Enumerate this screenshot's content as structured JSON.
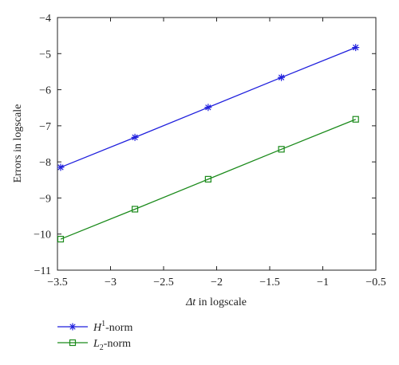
{
  "chart_data": {
    "type": "line",
    "xlabel_symbol": "Δt",
    "xlabel_rest": " in logscale",
    "ylabel": "Errors in logscale",
    "xlim": [
      -3.5,
      -0.5
    ],
    "ylim": [
      -11,
      -4
    ],
    "x_ticks": [
      -3.5,
      -3,
      -2.5,
      -2,
      -1.5,
      -1,
      -0.5
    ],
    "x_tick_labels": [
      "−3.5",
      "−3",
      "−2.5",
      "−2",
      "−1.5",
      "−1",
      "−0.5"
    ],
    "y_ticks": [
      -4,
      -5,
      -6,
      -7,
      -8,
      -9,
      -10,
      -11
    ],
    "y_tick_labels": [
      "−4",
      "−5",
      "−6",
      "−7",
      "−8",
      "−9",
      "−10",
      "−11"
    ],
    "grid": false,
    "legend_position": "bottom-left, below plot",
    "series": [
      {
        "name_main": "H",
        "name_sup": "1",
        "name_sub": "",
        "name_rest": "-norm",
        "color": "#1f1fdd",
        "marker": "star",
        "x": [
          -3.47,
          -2.77,
          -2.08,
          -1.39,
          -0.69
        ],
        "y": [
          -8.15,
          -7.32,
          -6.49,
          -5.66,
          -4.83
        ]
      },
      {
        "name_main": "L",
        "name_sup": "",
        "name_sub": "2",
        "name_rest": "-norm",
        "color": "#1a8a1a",
        "marker": "square",
        "x": [
          -3.47,
          -2.77,
          -2.08,
          -1.39,
          -0.69
        ],
        "y": [
          -10.14,
          -9.31,
          -8.48,
          -7.65,
          -6.82
        ]
      }
    ]
  }
}
